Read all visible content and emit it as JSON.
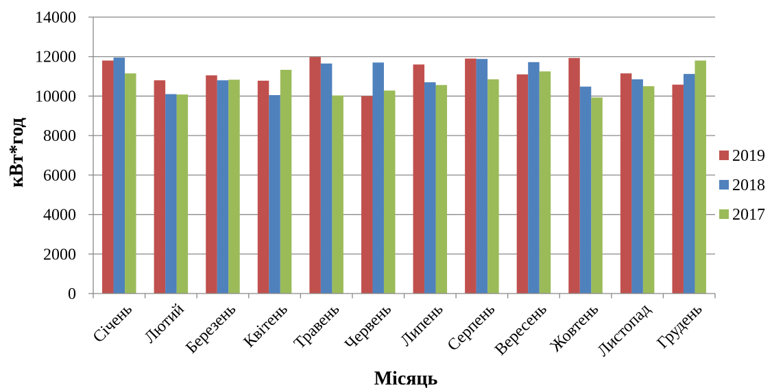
{
  "chart_data": {
    "type": "bar",
    "title": "",
    "xlabel": "Місяць",
    "ylabel": "кВт*год",
    "ylim": [
      0,
      14000
    ],
    "yticks": [
      0,
      2000,
      4000,
      6000,
      8000,
      10000,
      12000,
      14000
    ],
    "grid": "horizontal",
    "legend_position": "right",
    "categories": [
      "Січень",
      "Лютий",
      "Березень",
      "Квітень",
      "Травень",
      "Червень",
      "Липень",
      "Серпень",
      "Вересень",
      "Жовтень",
      "Листопад",
      "Грудень"
    ],
    "series": [
      {
        "name": "2019",
        "color": "#C0504D",
        "values": [
          11800,
          10800,
          11050,
          10780,
          11980,
          10000,
          11600,
          11900,
          11100,
          11930,
          11150,
          10580
        ]
      },
      {
        "name": "2018",
        "color": "#4F81BD",
        "values": [
          11950,
          10100,
          10800,
          10050,
          11650,
          11700,
          10700,
          11880,
          11720,
          10480,
          10850,
          11120
        ]
      },
      {
        "name": "2017",
        "color": "#9BBB59",
        "values": [
          11150,
          10080,
          10830,
          11330,
          10030,
          10280,
          10560,
          10850,
          11250,
          9930,
          10500,
          11800
        ]
      }
    ]
  }
}
